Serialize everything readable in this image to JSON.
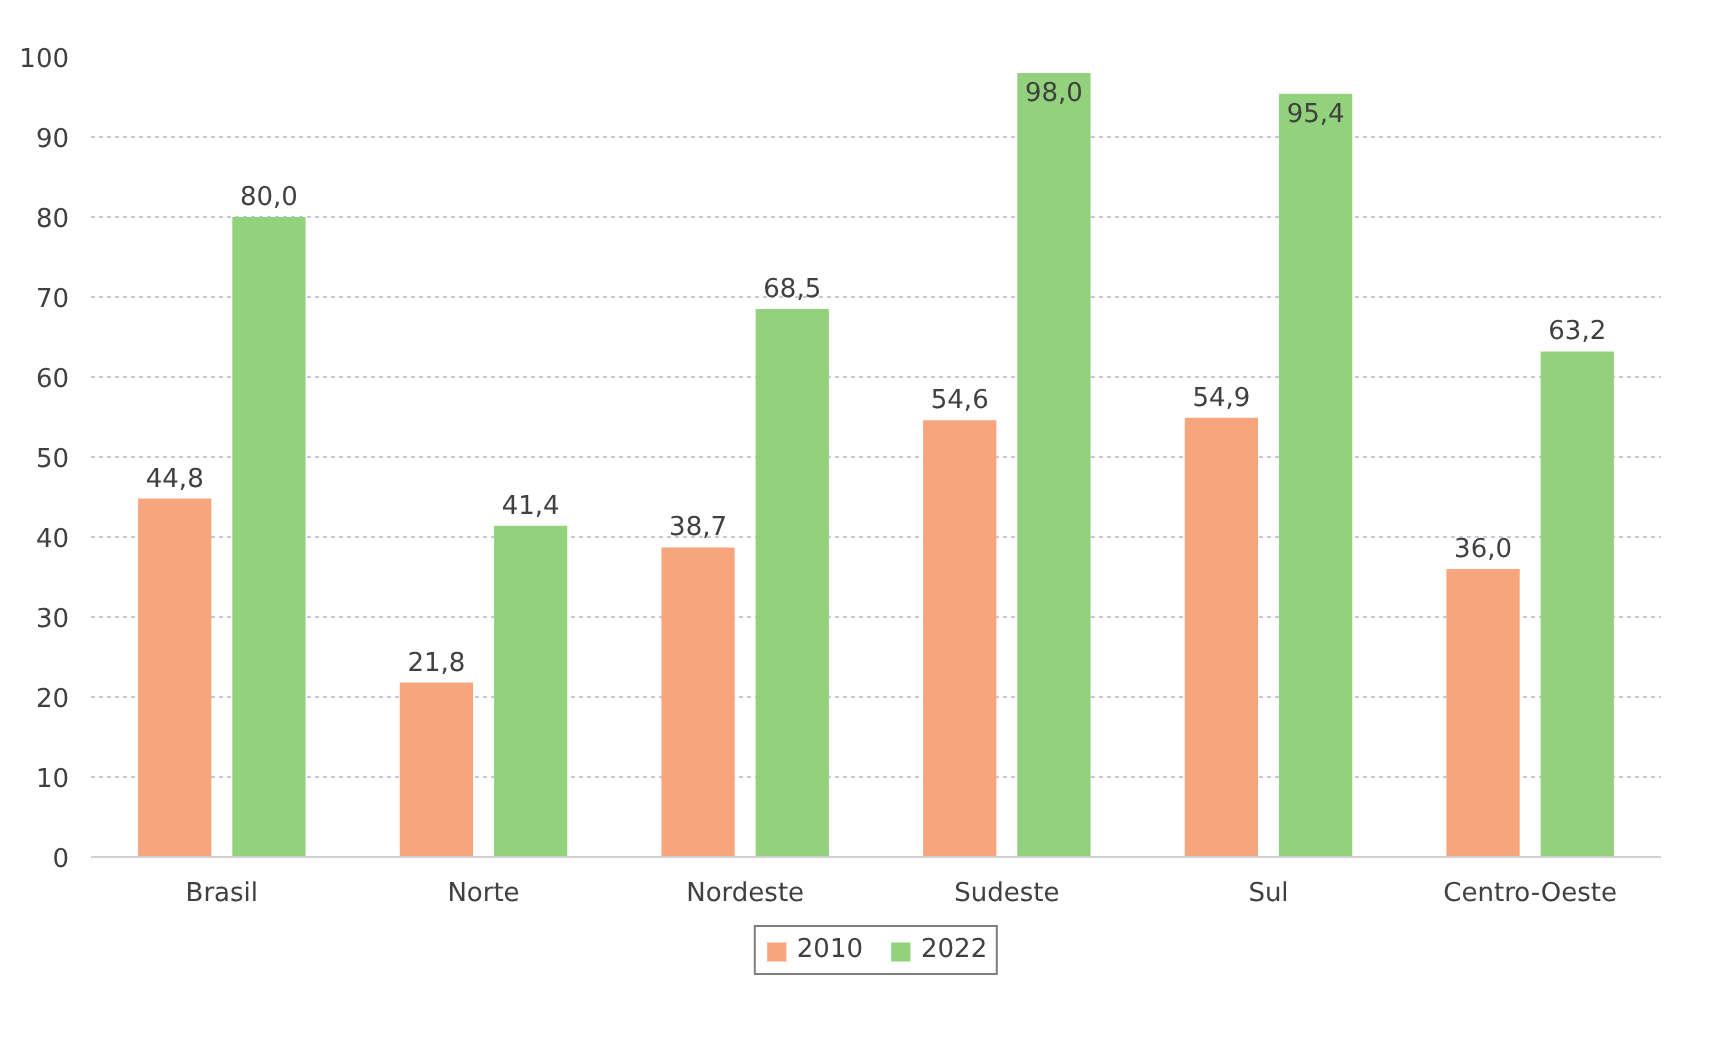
{
  "chart_data": {
    "type": "bar",
    "categories": [
      "Brasil",
      "Norte",
      "Nordeste",
      "Sudeste",
      "Sul",
      "Centro-Oeste"
    ],
    "series": [
      {
        "name": "2010",
        "color": "#f7a57c",
        "values": [
          44.8,
          21.8,
          38.7,
          54.6,
          54.9,
          36.0
        ],
        "value_labels": [
          "44,8",
          "21,8",
          "38,7",
          "54,6",
          "54,9",
          "36,0"
        ]
      },
      {
        "name": "2022",
        "color": "#92d27c",
        "values": [
          80.0,
          41.4,
          68.5,
          98.0,
          95.4,
          63.2
        ],
        "value_labels": [
          "80,0",
          "41,4",
          "68,5",
          "98,0",
          "95,4",
          "63,2"
        ]
      }
    ],
    "ylim": [
      0,
      100
    ],
    "yticks": [
      0,
      10,
      20,
      30,
      40,
      50,
      60,
      70,
      80,
      90,
      100
    ],
    "grid": "y",
    "legend": "bottom"
  }
}
